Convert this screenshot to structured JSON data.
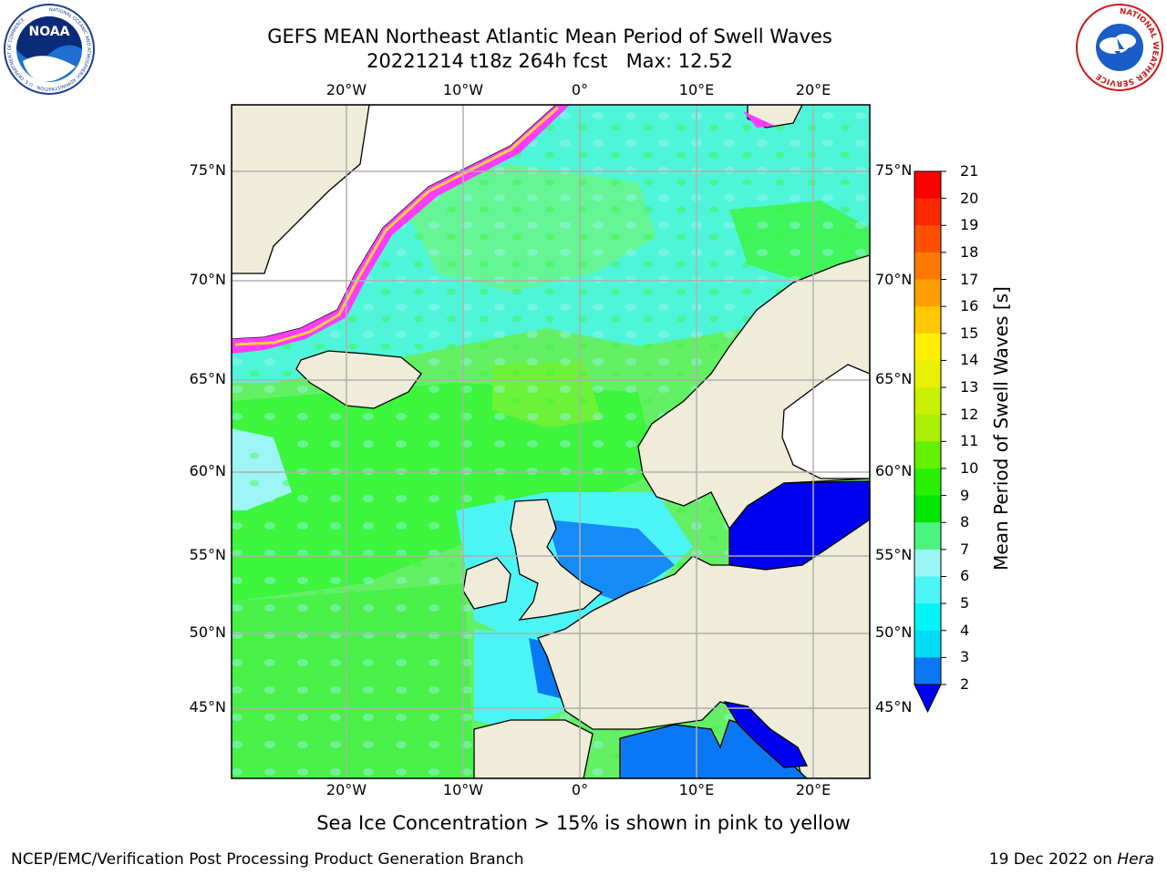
{
  "header": {
    "title_line1": "GEFS MEAN Northeast Atlantic Mean Period of Swell Waves",
    "run": "20221214 t18z 264h fcst",
    "max_label": "Max: 12.52"
  },
  "logos": {
    "noaa": {
      "center_text": "NOAA",
      "ring_text": "NATIONAL OCEANIC AND ATMOSPHERIC ADMINISTRATION · U.S. DEPARTMENT OF COMMERCE"
    },
    "nws": {
      "ring_text": "NATIONAL WEATHER SERVICE"
    }
  },
  "map": {
    "lon_ticks": [
      "20°W",
      "10°W",
      "0°",
      "10°E",
      "20°E"
    ],
    "lat_ticks": [
      "75°N",
      "70°N",
      "65°N",
      "60°N",
      "55°N",
      "50°N",
      "45°N"
    ],
    "colors": {
      "ocean_green": "#3cf53c",
      "ocean_lightgreen": "#78f578",
      "ocean_cyan": "#3cf5f5",
      "ocean_lightcyan": "#9ef5f5",
      "ocean_blue": "#0a78f5",
      "ocean_deepblue": "#0000f0",
      "land": "#efecd9",
      "ice_pink": "#ff3cff",
      "ice_yellow": "#ffd040",
      "grid": "#b0b0b0"
    }
  },
  "colorbar": {
    "title": "Mean Period of Swell Waves [s]",
    "ticks": [
      "21",
      "20",
      "19",
      "18",
      "17",
      "16",
      "15",
      "14",
      "13",
      "12",
      "11",
      "10",
      "9",
      "8",
      "7",
      "6",
      "5",
      "4",
      "3",
      "2"
    ],
    "colors": [
      "#ff0000",
      "#ff2800",
      "#ff5000",
      "#ff7800",
      "#ffa000",
      "#ffc800",
      "#fff000",
      "#e6f000",
      "#c8f000",
      "#aaf000",
      "#64f000",
      "#28f000",
      "#00e600",
      "#4bf57d",
      "#9bf5f5",
      "#4bf5f5",
      "#00f5f5",
      "#00dcf5",
      "#0a78f5",
      "#0000f0"
    ]
  },
  "caption": "Sea Ice Concentration > 15% is shown in pink to yellow",
  "footer": {
    "left": "NCEP/EMC/Verification Post Processing Product Generation Branch",
    "date": "19 Dec 2022 on ",
    "host": "Hera"
  }
}
